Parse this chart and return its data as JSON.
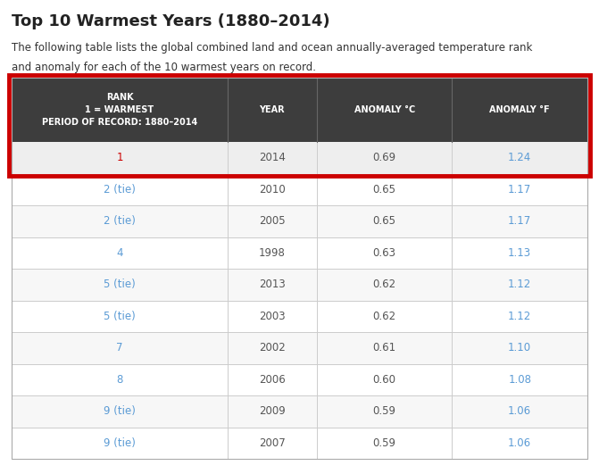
{
  "title": "Top 10 Warmest Years (1880–2014)",
  "subtitle_line1": "The following table lists the global combined land and ocean annually-averaged temperature rank",
  "subtitle_line2": "and anomaly for each of the 10 warmest years on record.",
  "header": [
    "RANK\n1 = WARMEST\nPERIOD OF RECORD: 1880–2014",
    "YEAR",
    "ANOMALY °C",
    "ANOMALY °F"
  ],
  "rows": [
    [
      "1",
      "2014",
      "0.69",
      "1.24"
    ],
    [
      "2 (tie)",
      "2010",
      "0.65",
      "1.17"
    ],
    [
      "2 (tie)",
      "2005",
      "0.65",
      "1.17"
    ],
    [
      "4",
      "1998",
      "0.63",
      "1.13"
    ],
    [
      "5 (tie)",
      "2013",
      "0.62",
      "1.12"
    ],
    [
      "5 (tie)",
      "2003",
      "0.62",
      "1.12"
    ],
    [
      "7",
      "2002",
      "0.61",
      "1.10"
    ],
    [
      "8",
      "2006",
      "0.60",
      "1.08"
    ],
    [
      "9 (tie)",
      "2009",
      "0.59",
      "1.06"
    ],
    [
      "9 (tie)",
      "2007",
      "0.59",
      "1.06"
    ]
  ],
  "header_bg": "#3d3d3d",
  "header_text_color": "#ffffff",
  "row1_bg": "#eeeeee",
  "row_even_bg": "#f7f7f7",
  "row_odd_bg": "#ffffff",
  "rank_color_row1": "#cc0000",
  "rank_color_normal": "#5b9bd5",
  "year_color": "#555555",
  "anomaly_c_color": "#555555",
  "anomaly_f_color": "#5b9bd5",
  "border_color": "#cc0000",
  "divider_color": "#cccccc",
  "header_divider_color": "#666666",
  "title_color": "#222222",
  "subtitle_color": "#333333",
  "fig_width": 6.71,
  "fig_height": 5.31,
  "title_fontsize": 13,
  "subtitle_fontsize": 8.5,
  "header_fontsize": 7,
  "cell_fontsize": 8.5
}
